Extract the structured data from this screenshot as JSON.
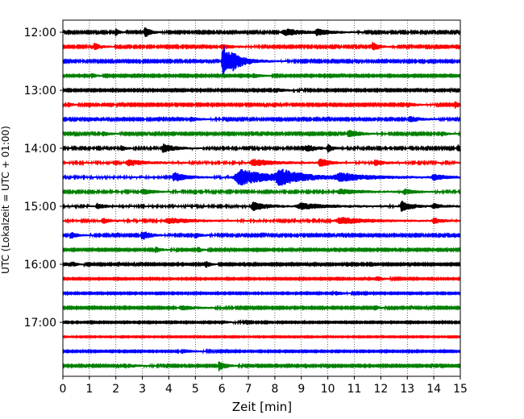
{
  "chart_data": {
    "type": "line",
    "subtype": "helicorder",
    "title": "",
    "xlabel": "Zeit  [min]",
    "ylabel": "UTC (Lokalzeit = UTC + 01:00)",
    "xlim": [
      0,
      15
    ],
    "x_ticks": [
      0,
      1,
      2,
      3,
      4,
      5,
      6,
      7,
      8,
      9,
      10,
      11,
      12,
      13,
      14,
      15
    ],
    "y_tick_labels": [
      "12:00",
      "13:00",
      "14:00",
      "15:00",
      "16:00",
      "17:00"
    ],
    "row_interval_minutes": 15,
    "rows_per_hour": 4,
    "grid": "vertical dotted at each minute",
    "trace_colors": [
      "#000000",
      "#ff0000",
      "#0000ff",
      "#008000"
    ],
    "rows": [
      {
        "start": "12:00",
        "color": "#000000",
        "noise": 0.35,
        "events": [
          {
            "t": 2.0,
            "amp": 2.2,
            "dur": 0.15
          },
          {
            "t": 3.1,
            "amp": 2.6,
            "dur": 0.3
          },
          {
            "t": 8.4,
            "amp": 1.8,
            "dur": 1.0
          },
          {
            "t": 9.6,
            "amp": 1.4,
            "dur": 0.6
          }
        ]
      },
      {
        "start": "12:15",
        "color": "#ff0000",
        "noise": 0.35,
        "events": [
          {
            "t": 1.2,
            "amp": 2.0,
            "dur": 0.3
          },
          {
            "t": 6.0,
            "amp": 1.2,
            "dur": 0.6
          },
          {
            "t": 11.7,
            "amp": 2.4,
            "dur": 0.3
          }
        ]
      },
      {
        "start": "12:30",
        "color": "#0000ff",
        "noise": 0.35,
        "events": [
          {
            "t": 6.05,
            "amp": 9.0,
            "dur": 0.35
          },
          {
            "t": 6.4,
            "amp": 3.0,
            "dur": 0.8
          }
        ]
      },
      {
        "start": "12:45",
        "color": "#008000",
        "noise": 0.3,
        "events": [
          {
            "t": 1.1,
            "amp": 1.5,
            "dur": 0.2
          },
          {
            "t": 7.2,
            "amp": 1.2,
            "dur": 0.4
          }
        ]
      },
      {
        "start": "13:00",
        "color": "#000000",
        "noise": 0.3,
        "events": [
          {
            "t": 8.0,
            "amp": 1.2,
            "dur": 0.5
          }
        ]
      },
      {
        "start": "13:15",
        "color": "#ff0000",
        "noise": 0.35,
        "events": [
          {
            "t": 0.2,
            "amp": 1.4,
            "dur": 0.2
          },
          {
            "t": 14.8,
            "amp": 2.0,
            "dur": 0.2
          },
          {
            "t": 13.0,
            "amp": 1.3,
            "dur": 0.4
          }
        ]
      },
      {
        "start": "13:30",
        "color": "#0000ff",
        "noise": 0.35,
        "events": [
          {
            "t": 4.8,
            "amp": 1.3,
            "dur": 0.4
          },
          {
            "t": 13.1,
            "amp": 1.6,
            "dur": 0.5
          }
        ]
      },
      {
        "start": "13:45",
        "color": "#008000",
        "noise": 0.35,
        "events": [
          {
            "t": 1.5,
            "amp": 1.4,
            "dur": 0.3
          },
          {
            "t": 10.8,
            "amp": 2.2,
            "dur": 0.5
          },
          {
            "t": 14.3,
            "amp": 1.2,
            "dur": 0.3
          }
        ]
      },
      {
        "start": "14:00",
        "color": "#000000",
        "noise": 0.4,
        "events": [
          {
            "t": 2.2,
            "amp": 1.6,
            "dur": 0.2
          },
          {
            "t": 3.8,
            "amp": 2.4,
            "dur": 0.5
          },
          {
            "t": 9.2,
            "amp": 1.8,
            "dur": 0.5
          },
          {
            "t": 10.0,
            "amp": 2.0,
            "dur": 0.2
          },
          {
            "t": 14.9,
            "amp": 2.2,
            "dur": 0.2
          }
        ]
      },
      {
        "start": "14:15",
        "color": "#ff0000",
        "noise": 0.45,
        "events": [
          {
            "t": 2.5,
            "amp": 1.6,
            "dur": 0.8
          },
          {
            "t": 7.2,
            "amp": 1.8,
            "dur": 1.0
          },
          {
            "t": 9.7,
            "amp": 2.2,
            "dur": 0.4
          },
          {
            "t": 11.8,
            "amp": 1.7,
            "dur": 0.4
          }
        ]
      },
      {
        "start": "14:30",
        "color": "#0000ff",
        "noise": 0.45,
        "events": [
          {
            "t": 4.2,
            "amp": 2.6,
            "dur": 0.5
          },
          {
            "t": 6.7,
            "amp": 4.5,
            "dur": 1.4
          },
          {
            "t": 8.2,
            "amp": 3.6,
            "dur": 1.0
          },
          {
            "t": 10.5,
            "amp": 2.0,
            "dur": 1.5
          },
          {
            "t": 14.0,
            "amp": 1.6,
            "dur": 0.5
          }
        ]
      },
      {
        "start": "14:45",
        "color": "#008000",
        "noise": 0.4,
        "events": [
          {
            "t": 3.0,
            "amp": 1.5,
            "dur": 0.5
          },
          {
            "t": 10.5,
            "amp": 1.4,
            "dur": 1.0
          },
          {
            "t": 12.9,
            "amp": 1.4,
            "dur": 0.5
          }
        ]
      },
      {
        "start": "15:00",
        "color": "#000000",
        "noise": 0.45,
        "events": [
          {
            "t": 1.3,
            "amp": 1.6,
            "dur": 0.3
          },
          {
            "t": 7.2,
            "amp": 2.4,
            "dur": 0.6
          },
          {
            "t": 9.0,
            "amp": 1.6,
            "dur": 1.2
          },
          {
            "t": 12.8,
            "amp": 3.2,
            "dur": 0.4
          },
          {
            "t": 14.0,
            "amp": 1.4,
            "dur": 0.4
          }
        ]
      },
      {
        "start": "15:15",
        "color": "#ff0000",
        "noise": 0.45,
        "events": [
          {
            "t": 1.5,
            "amp": 1.6,
            "dur": 0.3
          },
          {
            "t": 4.0,
            "amp": 1.5,
            "dur": 1.0
          },
          {
            "t": 10.5,
            "amp": 1.8,
            "dur": 1.2
          },
          {
            "t": 14.0,
            "amp": 1.3,
            "dur": 0.4
          }
        ]
      },
      {
        "start": "15:30",
        "color": "#0000ff",
        "noise": 0.35,
        "events": [
          {
            "t": 0.3,
            "amp": 1.8,
            "dur": 0.3
          },
          {
            "t": 3.0,
            "amp": 2.6,
            "dur": 0.4
          },
          {
            "t": 5.0,
            "amp": 1.4,
            "dur": 0.3
          }
        ]
      },
      {
        "start": "15:45",
        "color": "#008000",
        "noise": 0.3,
        "events": [
          {
            "t": 3.5,
            "amp": 1.6,
            "dur": 0.3
          },
          {
            "t": 5.1,
            "amp": 1.6,
            "dur": 0.2
          }
        ]
      },
      {
        "start": "16:00",
        "color": "#000000",
        "noise": 0.3,
        "events": [
          {
            "t": 0.4,
            "amp": 1.3,
            "dur": 0.2
          },
          {
            "t": 5.4,
            "amp": 2.0,
            "dur": 0.2
          }
        ]
      },
      {
        "start": "16:15",
        "color": "#ff0000",
        "noise": 0.25,
        "events": [
          {
            "t": 11.9,
            "amp": 1.2,
            "dur": 0.3
          }
        ]
      },
      {
        "start": "16:30",
        "color": "#0000ff",
        "noise": 0.25,
        "events": [
          {
            "t": 10.3,
            "amp": 1.1,
            "dur": 0.4
          }
        ]
      },
      {
        "start": "16:45",
        "color": "#008000",
        "noise": 0.3,
        "events": [
          {
            "t": 4.5,
            "amp": 1.2,
            "dur": 0.8
          },
          {
            "t": 11.8,
            "amp": 1.4,
            "dur": 0.2
          }
        ]
      },
      {
        "start": "17:00",
        "color": "#000000",
        "noise": 0.25,
        "events": [
          {
            "t": 6.0,
            "amp": 1.0,
            "dur": 0.4
          }
        ]
      },
      {
        "start": "17:15",
        "color": "#ff0000",
        "noise": 0.2,
        "events": []
      },
      {
        "start": "17:30",
        "color": "#0000ff",
        "noise": 0.25,
        "events": [
          {
            "t": 4.5,
            "amp": 1.1,
            "dur": 0.6
          }
        ]
      },
      {
        "start": "17:45",
        "color": "#008000",
        "noise": 0.3,
        "events": [
          {
            "t": 5.9,
            "amp": 3.0,
            "dur": 0.3
          },
          {
            "t": 2.5,
            "amp": 1.0,
            "dur": 0.5
          }
        ]
      }
    ]
  }
}
